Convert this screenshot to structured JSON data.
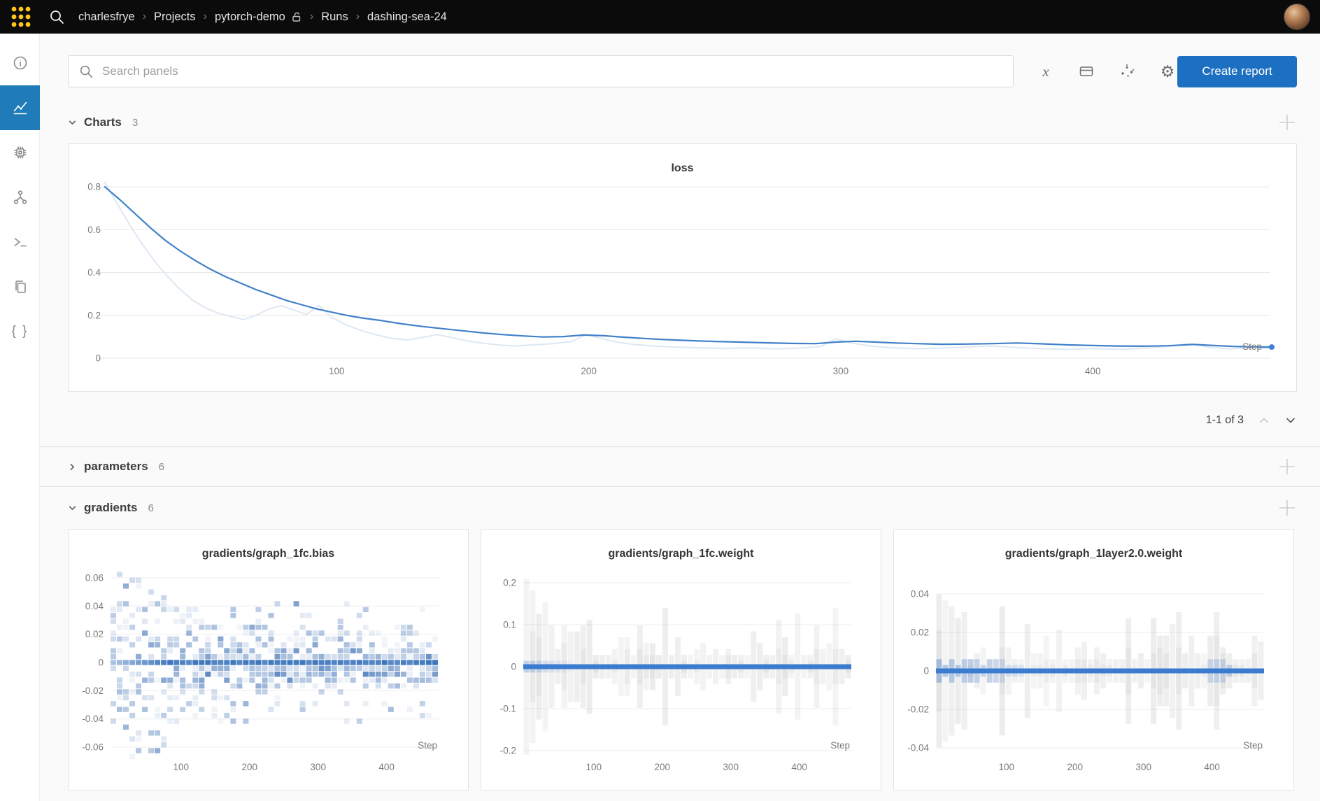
{
  "topbar": {
    "breadcrumb": [
      {
        "label": "charlesfrye"
      },
      {
        "label": "Projects"
      },
      {
        "label": "pytorch-demo",
        "lock": true
      },
      {
        "label": "Runs"
      },
      {
        "label": "dashing-sea-24"
      }
    ]
  },
  "toolbar": {
    "search_placeholder": "Search panels",
    "create_report_label": "Create report"
  },
  "sections": {
    "charts": {
      "title": "Charts",
      "count": "3"
    },
    "parameters": {
      "title": "parameters",
      "count": "6"
    },
    "gradients": {
      "title": "gradients",
      "count": "6"
    }
  },
  "pagination": {
    "label": "1-1 of 3"
  },
  "colors": {
    "accent_button": "#1d6fc2",
    "sidebar_active": "#1f7cb8",
    "logo_yellow": "#ffc61a",
    "line_blue": "#4181c9",
    "raw_line": "#dde8f3",
    "heat_band": "#3c7cd0"
  },
  "chart_data": [
    {
      "id": "loss",
      "type": "line",
      "title": "loss",
      "xlabel": "Step",
      "ylabel": "",
      "xlim": [
        0,
        471
      ],
      "ylim": [
        0,
        0.82
      ],
      "yticks": [
        0,
        0.2,
        0.4,
        0.6,
        0.8
      ],
      "xticks": [
        100,
        200,
        300,
        400
      ],
      "legend": "off",
      "grid": "horizontal",
      "series": [
        {
          "name": "loss (raw)",
          "color": "#dde8f3",
          "width": 2,
          "points": [
            [
              8,
              0.82
            ],
            [
              13,
              0.72
            ],
            [
              18,
              0.62
            ],
            [
              23,
              0.53
            ],
            [
              28,
              0.45
            ],
            [
              33,
              0.38
            ],
            [
              38,
              0.32
            ],
            [
              43,
              0.27
            ],
            [
              48,
              0.235
            ],
            [
              53,
              0.21
            ],
            [
              58,
              0.195
            ],
            [
              63,
              0.18
            ],
            [
              68,
              0.2
            ],
            [
              73,
              0.23
            ],
            [
              78,
              0.245
            ],
            [
              83,
              0.225
            ],
            [
              88,
              0.205
            ],
            [
              93,
              0.245
            ],
            [
              98,
              0.19
            ],
            [
              104,
              0.155
            ],
            [
              110,
              0.128
            ],
            [
              116,
              0.108
            ],
            [
              122,
              0.092
            ],
            [
              128,
              0.085
            ],
            [
              134,
              0.097
            ],
            [
              140,
              0.11
            ],
            [
              146,
              0.095
            ],
            [
              152,
              0.08
            ],
            [
              158,
              0.07
            ],
            [
              164,
              0.062
            ],
            [
              170,
              0.057
            ],
            [
              178,
              0.062
            ],
            [
              186,
              0.068
            ],
            [
              193,
              0.077
            ],
            [
              199,
              0.11
            ],
            [
              205,
              0.092
            ],
            [
              211,
              0.075
            ],
            [
              218,
              0.064
            ],
            [
              226,
              0.057
            ],
            [
              234,
              0.052
            ],
            [
              244,
              0.048
            ],
            [
              254,
              0.045
            ],
            [
              264,
              0.048
            ],
            [
              274,
              0.043
            ],
            [
              284,
              0.047
            ],
            [
              292,
              0.055
            ],
            [
              298,
              0.09
            ],
            [
              305,
              0.07
            ],
            [
              312,
              0.056
            ],
            [
              320,
              0.049
            ],
            [
              330,
              0.044
            ],
            [
              340,
              0.047
            ],
            [
              350,
              0.052
            ],
            [
              360,
              0.057
            ],
            [
              370,
              0.05
            ],
            [
              380,
              0.044
            ],
            [
              390,
              0.041
            ],
            [
              400,
              0.045
            ],
            [
              410,
              0.041
            ],
            [
              420,
              0.046
            ],
            [
              430,
              0.055
            ],
            [
              438,
              0.068
            ],
            [
              446,
              0.052
            ],
            [
              454,
              0.044
            ],
            [
              462,
              0.048
            ],
            [
              471,
              0.045
            ]
          ]
        },
        {
          "name": "loss (smoothed)",
          "color": "#4181c9",
          "width": 2.2,
          "points": [
            [
              8,
              0.8
            ],
            [
              14,
              0.74
            ],
            [
              20,
              0.675
            ],
            [
              26,
              0.61
            ],
            [
              32,
              0.55
            ],
            [
              38,
              0.5
            ],
            [
              44,
              0.455
            ],
            [
              50,
              0.415
            ],
            [
              56,
              0.38
            ],
            [
              62,
              0.35
            ],
            [
              68,
              0.32
            ],
            [
              74,
              0.295
            ],
            [
              80,
              0.27
            ],
            [
              86,
              0.25
            ],
            [
              92,
              0.23
            ],
            [
              98,
              0.215
            ],
            [
              104,
              0.2
            ],
            [
              110,
              0.188
            ],
            [
              118,
              0.175
            ],
            [
              126,
              0.16
            ],
            [
              134,
              0.148
            ],
            [
              142,
              0.138
            ],
            [
              150,
              0.128
            ],
            [
              158,
              0.118
            ],
            [
              166,
              0.11
            ],
            [
              174,
              0.104
            ],
            [
              182,
              0.099
            ],
            [
              190,
              0.101
            ],
            [
              198,
              0.108
            ],
            [
              206,
              0.105
            ],
            [
              214,
              0.098
            ],
            [
              222,
              0.092
            ],
            [
              230,
              0.087
            ],
            [
              240,
              0.082
            ],
            [
              250,
              0.078
            ],
            [
              260,
              0.075
            ],
            [
              270,
              0.072
            ],
            [
              280,
              0.069
            ],
            [
              290,
              0.068
            ],
            [
              298,
              0.075
            ],
            [
              306,
              0.079
            ],
            [
              314,
              0.075
            ],
            [
              322,
              0.071
            ],
            [
              330,
              0.068
            ],
            [
              340,
              0.065
            ],
            [
              350,
              0.066
            ],
            [
              360,
              0.068
            ],
            [
              370,
              0.071
            ],
            [
              380,
              0.067
            ],
            [
              390,
              0.062
            ],
            [
              400,
              0.059
            ],
            [
              410,
              0.057
            ],
            [
              420,
              0.056
            ],
            [
              430,
              0.058
            ],
            [
              440,
              0.064
            ],
            [
              448,
              0.059
            ],
            [
              456,
              0.055
            ],
            [
              464,
              0.053
            ],
            [
              471,
              0.052
            ]
          ]
        }
      ]
    },
    {
      "id": "grad-bias",
      "type": "heatmap",
      "subtype": "mosaic",
      "title": "gradients/graph_1fc.bias",
      "xlabel": "Step",
      "xlim": [
        -3,
        476
      ],
      "ylim": [
        -0.07,
        0.07
      ],
      "yticks": [
        0.06,
        0.04,
        0.02,
        0,
        -0.02,
        -0.04,
        -0.06
      ],
      "xticks": [
        100,
        200,
        300,
        400
      ],
      "seed": 11,
      "accent": "#3c7cd0",
      "description": "gradient magnitude histogram over steps; spread shrinks from ±0.06 early to ±0.015 late, dense blue band at 0"
    },
    {
      "id": "grad-weight",
      "type": "heatmap",
      "subtype": "bars",
      "title": "gradients/graph_1fc.weight",
      "xlabel": "Step",
      "xlim": [
        -3,
        476
      ],
      "ylim": [
        -0.22,
        0.22
      ],
      "yticks": [
        0.2,
        0.1,
        0,
        -0.1,
        -0.2
      ],
      "xticks": [
        100,
        200,
        300,
        400
      ],
      "seed": 23,
      "accent": "#3c7cd0",
      "description": "gray histogram bars up to ±0.2 early shrinking to ±0.05, solid blue band at 0"
    },
    {
      "id": "grad-layer2",
      "type": "heatmap",
      "subtype": "bars-blue",
      "title": "gradients/graph_1layer2.0.weight",
      "xlabel": "Step",
      "xlim": [
        -3,
        476
      ],
      "ylim": [
        -0.05,
        0.05
      ],
      "yticks": [
        0.04,
        0.02,
        0,
        -0.02,
        -0.04
      ],
      "xticks": [
        100,
        200,
        300,
        400
      ],
      "seed": 37,
      "accent": "#3c7cd0",
      "description": "gray histogram bars up to ±0.045 early shrinking to ±0.015, blue tint near 0 early, solid blue band at 0"
    }
  ]
}
